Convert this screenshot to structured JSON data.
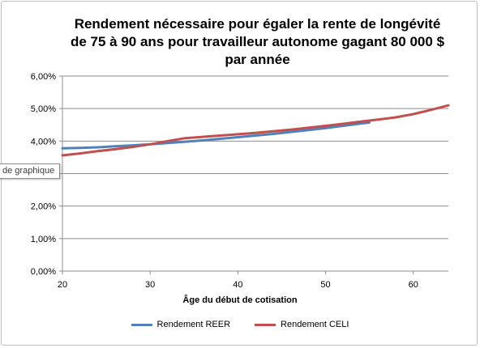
{
  "chart_data": {
    "type": "line",
    "title": [
      "Rendement nécessaire pour égaler la rente de longévité",
      "de 75 à 90 ans pour travailleur autonome gagant 80 000 $",
      "par année"
    ],
    "xlabel": "Âge du début de cotisation",
    "ylabel": "",
    "xlim": [
      20,
      64
    ],
    "ylim": [
      0,
      0.06
    ],
    "x_ticks": [
      20,
      30,
      40,
      50,
      60
    ],
    "y_ticks": [
      "0,00%",
      "1,00%",
      "2,00%",
      "3,00%",
      "4,00%",
      "5,00%",
      "6,00%"
    ],
    "y_tick_values": [
      0,
      0.01,
      0.02,
      0.03,
      0.04,
      0.05,
      0.06
    ],
    "grid": true,
    "legend_position": "bottom",
    "series": [
      {
        "name": "Rendement REER",
        "color": "#4f81bd",
        "x": [
          20,
          22,
          24,
          26,
          28,
          30,
          32,
          34,
          36,
          38,
          40,
          42,
          44,
          46,
          48,
          50,
          52,
          54,
          55
        ],
        "y": [
          0.0378,
          0.0379,
          0.0381,
          0.0384,
          0.0387,
          0.039,
          0.0394,
          0.0398,
          0.0402,
          0.0407,
          0.0412,
          0.0417,
          0.0422,
          0.0428,
          0.0434,
          0.044,
          0.0447,
          0.0454,
          0.0457
        ]
      },
      {
        "name": "Rendement CELI",
        "color": "#c0504d",
        "x": [
          20,
          22,
          24,
          26,
          28,
          30,
          32,
          34,
          36,
          38,
          40,
          42,
          44,
          46,
          48,
          50,
          52,
          54,
          56,
          58,
          60,
          62,
          64
        ],
        "y": [
          0.0356,
          0.0362,
          0.0369,
          0.0375,
          0.0382,
          0.039,
          0.04,
          0.0409,
          0.0413,
          0.0417,
          0.0421,
          0.0425,
          0.043,
          0.0435,
          0.0441,
          0.0447,
          0.0453,
          0.046,
          0.0466,
          0.0473,
          0.0483,
          0.0496,
          0.051
        ]
      }
    ]
  },
  "tooltip_text": "de graphique"
}
